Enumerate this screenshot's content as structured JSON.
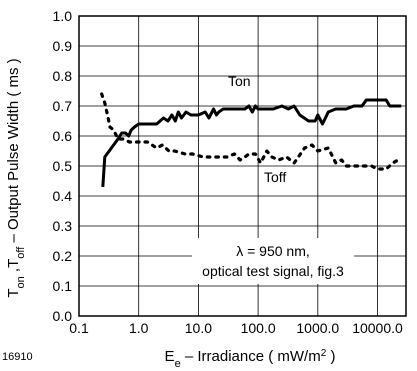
{
  "figure_id": "16910",
  "chart_data": {
    "type": "line",
    "ylabel": {
      "main": "T",
      "sub1": "on",
      "mid": " ,T",
      "sub2": "off",
      "rest": "  –  Output Pulse Width ( ms )"
    },
    "xlabel": {
      "main": "E",
      "sub": "e",
      "rest": " – Irradiance ( mW/m",
      "sup": "2",
      "end": " )"
    },
    "xscale": "log",
    "xlim": [
      0.1,
      30000
    ],
    "ylim": [
      0.0,
      1.0
    ],
    "xticks": [
      {
        "value": 0.1,
        "label": "0.1"
      },
      {
        "value": 1,
        "label": "1.0"
      },
      {
        "value": 10,
        "label": "10.0"
      },
      {
        "value": 100,
        "label": "100.0"
      },
      {
        "value": 1000,
        "label": "1000.0"
      },
      {
        "value": 10000,
        "label": "10000.0"
      }
    ],
    "yticks": [
      "0.0",
      "0.1",
      "0.2",
      "0.3",
      "0.4",
      "0.5",
      "0.6",
      "0.7",
      "0.8",
      "0.9",
      "1.0"
    ],
    "grid": true,
    "annotation": {
      "line1": "λ = 950 nm,",
      "line2": "optical test signal, fig.3"
    },
    "series": [
      {
        "name": "Ton",
        "style": "solid",
        "color": "#000000",
        "points": [
          [
            0.25,
            0.43
          ],
          [
            0.27,
            0.53
          ],
          [
            0.32,
            0.55
          ],
          [
            0.38,
            0.57
          ],
          [
            0.45,
            0.59
          ],
          [
            0.52,
            0.61
          ],
          [
            0.6,
            0.61
          ],
          [
            0.68,
            0.6
          ],
          [
            0.75,
            0.62
          ],
          [
            0.85,
            0.63
          ],
          [
            1.0,
            0.64
          ],
          [
            1.4,
            0.64
          ],
          [
            2.0,
            0.64
          ],
          [
            2.6,
            0.66
          ],
          [
            3.1,
            0.65
          ],
          [
            3.6,
            0.67
          ],
          [
            4.1,
            0.65
          ],
          [
            4.6,
            0.68
          ],
          [
            5.2,
            0.66
          ],
          [
            6.2,
            0.68
          ],
          [
            7.5,
            0.67
          ],
          [
            10,
            0.67
          ],
          [
            13,
            0.68
          ],
          [
            15,
            0.66
          ],
          [
            18,
            0.69
          ],
          [
            20,
            0.67
          ],
          [
            22,
            0.68
          ],
          [
            26,
            0.69
          ],
          [
            32,
            0.69
          ],
          [
            45,
            0.69
          ],
          [
            60,
            0.69
          ],
          [
            70,
            0.7
          ],
          [
            80,
            0.68
          ],
          [
            90,
            0.7
          ],
          [
            100,
            0.69
          ],
          [
            130,
            0.69
          ],
          [
            180,
            0.69
          ],
          [
            250,
            0.7
          ],
          [
            320,
            0.69
          ],
          [
            400,
            0.7
          ],
          [
            500,
            0.67
          ],
          [
            700,
            0.65
          ],
          [
            900,
            0.65
          ],
          [
            1000,
            0.67
          ],
          [
            1200,
            0.64
          ],
          [
            1500,
            0.68
          ],
          [
            2000,
            0.69
          ],
          [
            3000,
            0.69
          ],
          [
            4000,
            0.7
          ],
          [
            5500,
            0.7
          ],
          [
            6500,
            0.72
          ],
          [
            10000,
            0.72
          ],
          [
            14000,
            0.72
          ],
          [
            16000,
            0.7
          ],
          [
            25000,
            0.7
          ]
        ]
      },
      {
        "name": "Toff",
        "style": "dotted",
        "color": "#000000",
        "points": [
          [
            0.24,
            0.74
          ],
          [
            0.27,
            0.71
          ],
          [
            0.3,
            0.67
          ],
          [
            0.33,
            0.63
          ],
          [
            0.38,
            0.62
          ],
          [
            0.45,
            0.59
          ],
          [
            0.55,
            0.59
          ],
          [
            0.7,
            0.58
          ],
          [
            1.0,
            0.58
          ],
          [
            1.4,
            0.58
          ],
          [
            2.0,
            0.56
          ],
          [
            2.5,
            0.57
          ],
          [
            3.2,
            0.55
          ],
          [
            4.0,
            0.55
          ],
          [
            6.0,
            0.54
          ],
          [
            8.0,
            0.54
          ],
          [
            12,
            0.53
          ],
          [
            20,
            0.53
          ],
          [
            30,
            0.53
          ],
          [
            40,
            0.54
          ],
          [
            50,
            0.52
          ],
          [
            60,
            0.53
          ],
          [
            70,
            0.54
          ],
          [
            90,
            0.54
          ],
          [
            110,
            0.51
          ],
          [
            140,
            0.55
          ],
          [
            170,
            0.53
          ],
          [
            220,
            0.52
          ],
          [
            300,
            0.53
          ],
          [
            400,
            0.51
          ],
          [
            600,
            0.56
          ],
          [
            800,
            0.57
          ],
          [
            1000,
            0.55
          ],
          [
            1500,
            0.56
          ],
          [
            2000,
            0.51
          ],
          [
            2500,
            0.52
          ],
          [
            3000,
            0.5
          ],
          [
            4000,
            0.5
          ],
          [
            6000,
            0.5
          ],
          [
            8000,
            0.5
          ],
          [
            10000,
            0.49
          ],
          [
            14000,
            0.49
          ],
          [
            18000,
            0.51
          ],
          [
            22000,
            0.52
          ]
        ]
      }
    ]
  }
}
